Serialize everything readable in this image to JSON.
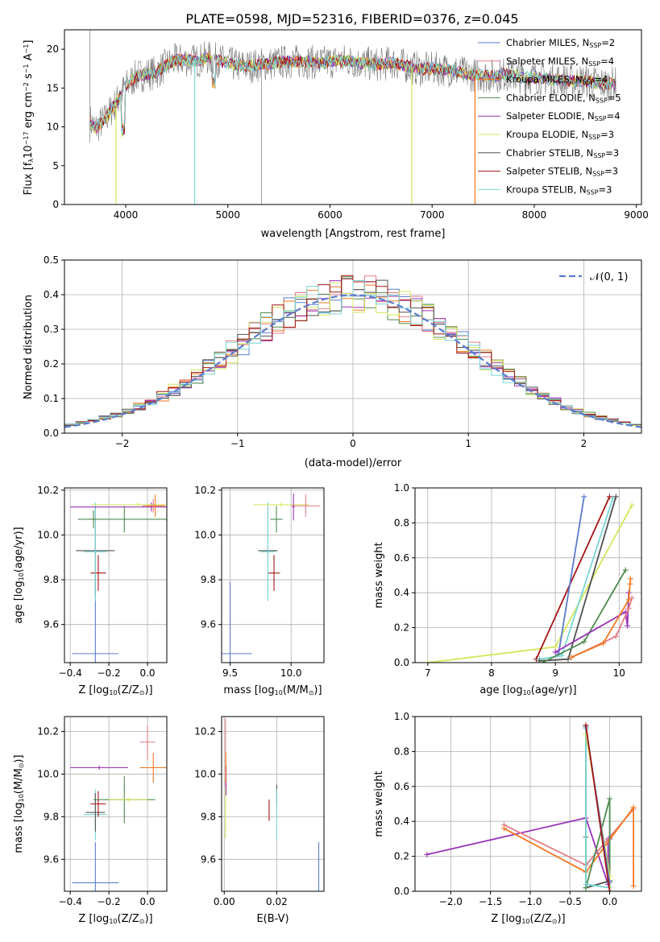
{
  "title": "PLATE=0598, MJD=52316, FIBERID=0376, z=0.045",
  "colors": {
    "Chabrier MILES": "#5b7ccc",
    "Salpeter MILES": "#e37a86",
    "Kroupa MILES": "#c88420",
    "Chabrier ELODIE": "#4e8a4e",
    "Salpeter ELODIE": "#9a32b8",
    "Kroupa ELODIE": "#d4e65a",
    "Chabrier STELIB": "#505050",
    "Salpeter STELIB": "#a31515",
    "Kroupa STELIB": "#7ad6d6",
    "orange": "#f07820",
    "gaussian": "#5b7ccc"
  },
  "chart_data": [
    {
      "type": "line",
      "panel": "spectrum",
      "xlabel": "wavelength [Angstrom, rest frame]",
      "ylabel_main": "Flux [f",
      "ylabel_sub": "λ",
      "ylabel_rest": "10",
      "ylabel_sup1": "−17",
      "ylabel_mid": " erg cm",
      "ylabel_sup2": "−2",
      "ylabel_mid2": " s",
      "ylabel_sup3": "−1",
      "ylabel_end": " A",
      "ylabel_sup4": "−1",
      "ylabel_close": "]",
      "xlim": [
        3400,
        9050
      ],
      "ylim": [
        0,
        22.5
      ],
      "xticks": [
        4000,
        5000,
        6000,
        7000,
        8000,
        9000
      ],
      "yticks": [
        0,
        5,
        10,
        15,
        20
      ],
      "legend": [
        {
          "name": "Chabrier MILES",
          "nssp": "2"
        },
        {
          "name": "Salpeter MILES",
          "nssp": "4"
        },
        {
          "name": "Kroupa MILES",
          "nssp": "4"
        },
        {
          "name": "Chabrier ELODIE",
          "nssp": "5"
        },
        {
          "name": "Salpeter ELODIE",
          "nssp": "4"
        },
        {
          "name": "Kroupa ELODIE",
          "nssp": "3"
        },
        {
          "name": "Chabrier STELIB",
          "nssp": "3"
        },
        {
          "name": "Salpeter STELIB",
          "nssp": "3"
        },
        {
          "name": "Kroupa STELIB",
          "nssp": "3"
        }
      ],
      "legend_prefix": "N",
      "legend_sub": "SSP",
      "continuum": [
        [
          3650,
          10.8
        ],
        [
          3700,
          9.8
        ],
        [
          3800,
          11.0
        ],
        [
          3900,
          13.0
        ],
        [
          4000,
          15.2
        ],
        [
          4100,
          16.5
        ],
        [
          4200,
          16.8
        ],
        [
          4300,
          17.0
        ],
        [
          4400,
          18.0
        ],
        [
          4500,
          18.6
        ],
        [
          4600,
          18.6
        ],
        [
          4700,
          18.5
        ],
        [
          4800,
          18.9
        ],
        [
          4900,
          18.6
        ],
        [
          5000,
          18.2
        ],
        [
          5100,
          17.9
        ],
        [
          5200,
          17.8
        ],
        [
          5300,
          18.0
        ],
        [
          5400,
          18.1
        ],
        [
          5500,
          18.3
        ],
        [
          5600,
          18.4
        ],
        [
          5700,
          18.4
        ],
        [
          5800,
          18.4
        ],
        [
          5900,
          18.2
        ],
        [
          6000,
          18.4
        ],
        [
          6100,
          18.5
        ],
        [
          6200,
          18.5
        ],
        [
          6300,
          18.2
        ],
        [
          6400,
          18.1
        ],
        [
          6500,
          18.0
        ],
        [
          6600,
          18.3
        ],
        [
          6700,
          18.0
        ],
        [
          6800,
          17.7
        ],
        [
          6900,
          17.4
        ],
        [
          7000,
          17.5
        ],
        [
          7100,
          17.4
        ],
        [
          7200,
          17.3
        ],
        [
          7300,
          16.9
        ],
        [
          7400,
          16.7
        ],
        [
          7500,
          16.6
        ],
        [
          7600,
          16.5
        ],
        [
          7700,
          16.8
        ],
        [
          7800,
          16.6
        ],
        [
          7900,
          16.3
        ],
        [
          8000,
          16.4
        ],
        [
          8100,
          16.2
        ],
        [
          8200,
          16.1
        ],
        [
          8300,
          16.0
        ],
        [
          8400,
          15.9
        ],
        [
          8500,
          15.9
        ],
        [
          8600,
          15.7
        ],
        [
          8700,
          15.5
        ],
        [
          8800,
          15.6
        ]
      ],
      "drops": [
        {
          "color": "Kroupa ELODIE",
          "x": 3905,
          "y": 0
        },
        {
          "color": "Kroupa STELIB",
          "x": 4675,
          "y": 0
        },
        {
          "color": "Kroupa ELODIE",
          "x": 6800,
          "y": 0
        },
        {
          "color": "orange",
          "x": 7420,
          "y": 0
        }
      ]
    },
    {
      "type": "histogram",
      "panel": "residuals",
      "xlabel": "(data-model)/error",
      "ylabel": "Normed distribution",
      "xlim": [
        -2.5,
        2.5
      ],
      "ylim": [
        0,
        0.5
      ],
      "xticks": [
        -2,
        -1,
        0,
        1,
        2
      ],
      "xticklabels": [
        "−2",
        "−1",
        "0",
        "1",
        "2"
      ],
      "yticks": [
        0.0,
        0.1,
        0.2,
        0.3,
        0.4,
        0.5
      ],
      "yticklabels": [
        "0.0",
        "0.1",
        "0.2",
        "0.3",
        "0.4",
        "0.5"
      ],
      "legend_label": "𝒩(0, 1)",
      "bin_width": 0.1
    },
    {
      "type": "errorbar",
      "panel": "age-vs-Z",
      "xlabel": "Z [log",
      "xlabel_sub": "10",
      "xlabel_rest": "(Z/Z",
      "xlabel_sub2": "⊙",
      "xlabel_close": ")]",
      "ylabel": "age  [log",
      "ylabel_sub": "10",
      "ylabel_rest": "(age/yr)]",
      "xlim": [
        -0.43,
        0.1
      ],
      "ylim": [
        9.43,
        10.21
      ],
      "xticks": [
        -0.4,
        -0.2,
        0.0
      ],
      "xticklabels": [
        "−0.4",
        "−0.2",
        "0.0"
      ],
      "yticks": [
        9.6,
        9.8,
        10.0,
        10.2
      ],
      "yticklabels": [
        "9.6",
        "9.8",
        "10.0",
        "10.2"
      ],
      "points": [
        {
          "c": "Chabrier MILES",
          "x": -0.27,
          "y": 9.47,
          "xe": 0.12,
          "ye": 0.32
        },
        {
          "c": "Salpeter STELIB",
          "x": -0.255,
          "y": 9.83,
          "xe": 0.04,
          "ye": 0.08
        },
        {
          "c": "Chabrier STELIB",
          "x": -0.27,
          "y": 9.93,
          "xe": 0.1,
          "ye": 0.2
        },
        {
          "c": "Kroupa STELIB",
          "x": -0.27,
          "y": 9.925,
          "xe": 0.06,
          "ye": 0.22
        },
        {
          "c": "Chabrier ELODIE",
          "x": -0.12,
          "y": 10.07,
          "xe": 0.24,
          "ye": 0.06
        },
        {
          "c": "Chabrier ELODIE",
          "x": -0.28,
          "y": 10.07,
          "xe": 0.02,
          "ye": 0.04
        },
        {
          "c": "Salpeter ELODIE",
          "x": 0.02,
          "y": 10.125,
          "xe": 0.42,
          "ye": 0.02
        },
        {
          "c": "Kroupa ELODIE",
          "x": -0.05,
          "y": 10.135,
          "xe": 0.24,
          "ye": 0.01
        },
        {
          "c": "Salpeter MILES",
          "x": 0.03,
          "y": 10.13,
          "xe": 0.06,
          "ye": 0.03
        },
        {
          "c": "orange",
          "x": 0.04,
          "y": 10.13,
          "xe": 0.05,
          "ye": 0.05
        }
      ]
    },
    {
      "type": "errorbar",
      "panel": "age-vs-mass",
      "xlabel": "mass [log",
      "xlabel_sub": "10",
      "xlabel_rest": "(M/M",
      "xlabel_sub2": "⊙",
      "xlabel_close": ")]",
      "xlim": [
        9.43,
        10.27
      ],
      "ylim": [
        9.43,
        10.21
      ],
      "xticks": [
        9.5,
        10.0
      ],
      "xticklabels": [
        "9.5",
        "10.0"
      ],
      "yticks": [
        9.6,
        9.8,
        10.0,
        10.2
      ],
      "yticklabels": [
        "9.6",
        "9.8",
        "10.0",
        "10.2"
      ],
      "points": [
        {
          "c": "Chabrier MILES",
          "x": 9.5,
          "y": 9.47,
          "xe": 0.18,
          "ye": 0.32
        },
        {
          "c": "Salpeter STELIB",
          "x": 9.86,
          "y": 9.83,
          "xe": 0.05,
          "ye": 0.08
        },
        {
          "c": "Chabrier STELIB",
          "x": 9.81,
          "y": 9.93,
          "xe": 0.08,
          "ye": 0.2
        },
        {
          "c": "Kroupa STELIB",
          "x": 9.81,
          "y": 9.925,
          "xe": 0.06,
          "ye": 0.22
        },
        {
          "c": "Chabrier ELODIE",
          "x": 9.88,
          "y": 10.07,
          "xe": 0.05,
          "ye": 0.06
        },
        {
          "c": "Kroupa ELODIE",
          "x": 9.92,
          "y": 10.135,
          "xe": 0.23,
          "ye": 0.01
        },
        {
          "c": "Salpeter ELODIE",
          "x": 10.02,
          "y": 10.125,
          "xe": 0.01,
          "ye": 0.06
        },
        {
          "c": "Salpeter MILES",
          "x": 10.12,
          "y": 10.13,
          "xe": 0.12,
          "ye": 0.05
        }
      ]
    },
    {
      "type": "line",
      "panel": "weight-vs-age",
      "xlabel": "age  [log",
      "xlabel_sub": "10",
      "xlabel_rest": "(age/yr)]",
      "ylabel": "mass weight",
      "xlim": [
        6.8,
        10.35
      ],
      "ylim": [
        0,
        1.0
      ],
      "xticks": [
        7,
        8,
        9,
        10
      ],
      "xticklabels": [
        "7",
        "8",
        "9",
        "10"
      ],
      "yticks": [
        0.0,
        0.2,
        0.4,
        0.6,
        0.8,
        1.0
      ],
      "yticklabels": [
        "0.0",
        "0.2",
        "0.4",
        "0.6",
        "0.8",
        "1.0"
      ],
      "series": [
        {
          "c": "Kroupa ELODIE",
          "x": [
            7.0,
            9.0,
            10.2
          ],
          "y": [
            0.0,
            0.09,
            0.9
          ]
        },
        {
          "c": "Salpeter STELIB",
          "x": [
            8.7,
            9.85
          ],
          "y": [
            0.02,
            0.95
          ]
        },
        {
          "c": "Chabrier MILES",
          "x": [
            9.05,
            9.45
          ],
          "y": [
            0.05,
            0.95
          ]
        },
        {
          "c": "Kroupa STELIB",
          "x": [
            8.75,
            9.1,
            9.9
          ],
          "y": [
            0.02,
            0.04,
            0.94
          ]
        },
        {
          "c": "Chabrier STELIB",
          "x": [
            8.75,
            9.2,
            9.95
          ],
          "y": [
            0.01,
            0.02,
            0.95
          ]
        },
        {
          "c": "Chabrier ELODIE",
          "x": [
            8.8,
            9.45,
            10.1
          ],
          "y": [
            0.0,
            0.12,
            0.53
          ]
        },
        {
          "c": "Salpeter ELODIE",
          "x": [
            9.0,
            10.1,
            10.13,
            10.15
          ],
          "y": [
            0.06,
            0.29,
            0.21,
            0.4
          ]
        },
        {
          "c": "Salpeter MILES",
          "x": [
            9.25,
            9.95,
            10.15,
            10.2
          ],
          "y": [
            0.03,
            0.15,
            0.31,
            0.37
          ]
        },
        {
          "c": "orange",
          "x": [
            9.25,
            9.75,
            10.15,
            10.17,
            10.18
          ],
          "y": [
            0.03,
            0.11,
            0.36,
            0.45,
            0.48
          ]
        }
      ]
    },
    {
      "type": "errorbar",
      "panel": "mass-vs-Z",
      "xlabel": "Z [log",
      "xlabel_sub": "10",
      "xlabel_rest": "(Z/Z",
      "xlabel_sub2": "⊙",
      "xlabel_close": ")]",
      "ylabel": "mass [log",
      "ylabel_sub": "10",
      "ylabel_rest": "(M/M",
      "ylabel_sub2": "⊙",
      "ylabel_close": ")]",
      "xlim": [
        -0.43,
        0.1
      ],
      "ylim": [
        9.45,
        10.27
      ],
      "xticks": [
        -0.4,
        -0.2,
        0.0
      ],
      "xticklabels": [
        "−0.4",
        "−0.2",
        "0.0"
      ],
      "yticks": [
        9.6,
        9.8,
        10.0,
        10.2
      ],
      "yticklabels": [
        "9.6",
        "9.8",
        "10.0",
        "10.2"
      ],
      "points": [
        {
          "c": "Chabrier MILES",
          "x": -0.27,
          "y": 9.49,
          "xe": 0.12,
          "ye": 0.19
        },
        {
          "c": "Kroupa STELIB",
          "x": -0.27,
          "y": 9.81,
          "xe": 0.06,
          "ye": 0.12
        },
        {
          "c": "Chabrier STELIB",
          "x": -0.27,
          "y": 9.82,
          "xe": 0.05,
          "ye": 0.09
        },
        {
          "c": "Salpeter STELIB",
          "x": -0.255,
          "y": 9.86,
          "xe": 0.04,
          "ye": 0.06
        },
        {
          "c": "Chabrier ELODIE",
          "x": -0.12,
          "y": 9.88,
          "xe": 0.16,
          "ye": 0.11
        },
        {
          "c": "Kroupa ELODIE",
          "x": -0.1,
          "y": 9.88,
          "xe": 0.1,
          "ye": 0.01
        },
        {
          "c": "Salpeter ELODIE",
          "x": -0.25,
          "y": 10.03,
          "xe": 0.15,
          "ye": 0.01
        },
        {
          "c": "orange",
          "x": 0.03,
          "y": 10.03,
          "xe": 0.07,
          "ye": 0.07
        },
        {
          "c": "Salpeter MILES",
          "x": 0.0,
          "y": 10.15,
          "xe": 0.04,
          "ye": 0.08
        }
      ]
    },
    {
      "type": "errorbar",
      "panel": "mass-vs-ebv",
      "xlabel": "E(B-V)",
      "xlim": [
        -0.001,
        0.038
      ],
      "ylim": [
        9.45,
        10.27
      ],
      "xticks": [
        0.0,
        0.02
      ],
      "xticklabels": [
        "0.00",
        "0.02"
      ],
      "yticks": [
        9.6,
        9.8,
        10.0,
        10.2
      ],
      "yticklabels": [
        "9.6",
        "9.8",
        "10.0",
        "10.2"
      ],
      "points": [
        {
          "c": "Kroupa ELODIE",
          "x": 0.0005,
          "y": 9.82,
          "xe": 0,
          "ye": 0.12
        },
        {
          "c": "Salpeter MILES",
          "x": 0.0005,
          "y": 10.1,
          "xe": 0,
          "ye": 0.16
        },
        {
          "c": "Salpeter ELODIE",
          "x": 0.0007,
          "y": 9.97,
          "xe": 0,
          "ye": 0.07
        },
        {
          "c": "orange",
          "x": 0.0006,
          "y": 10.03,
          "xe": 0,
          "ye": 0.07
        },
        {
          "c": "Salpeter STELIB",
          "x": 0.0171,
          "y": 9.83,
          "xe": 0,
          "ye": 0.05
        },
        {
          "c": "Chabrier STELIB",
          "x": 0.02,
          "y": 9.9,
          "xe": 0,
          "ye": 0.05
        },
        {
          "c": "Kroupa STELIB",
          "x": 0.02,
          "y": 9.81,
          "xe": 0,
          "ye": 0.12
        },
        {
          "c": "Chabrier MILES",
          "x": 0.036,
          "y": 9.49,
          "xe": 0,
          "ye": 0.19
        }
      ]
    },
    {
      "type": "line",
      "panel": "weight-vs-Z",
      "xlabel": "Z [log",
      "xlabel_sub": "10",
      "xlabel_rest": "(Z/Z",
      "xlabel_sub2": "⊙",
      "xlabel_close": ")]",
      "ylabel": "mass weight",
      "xlim": [
        -2.45,
        0.4
      ],
      "ylim": [
        0,
        1.0
      ],
      "xticks": [
        -2.0,
        -1.5,
        -1.0,
        -0.5,
        0.0
      ],
      "xticklabels": [
        "−2.0",
        "−1.5",
        "−1.0",
        "−0.5",
        "0.0"
      ],
      "yticks": [
        0.0,
        0.2,
        0.4,
        0.6,
        0.8,
        1.0
      ],
      "yticklabels": [
        "0.0",
        "0.2",
        "0.4",
        "0.6",
        "0.8",
        "1.0"
      ],
      "series": [
        {
          "c": "Salpeter ELODIE",
          "x": [
            -2.3,
            -0.3,
            -0.02,
            -0.02,
            0.0
          ],
          "y": [
            0.21,
            0.42,
            0.04,
            0.3,
            0.3
          ]
        },
        {
          "c": "Salpeter MILES",
          "x": [
            -1.33,
            -0.3,
            0.3
          ],
          "y": [
            0.38,
            0.15,
            0.47
          ]
        },
        {
          "c": "orange",
          "x": [
            -1.33,
            -0.3,
            0.3,
            0.3
          ],
          "y": [
            0.36,
            0.11,
            0.48,
            0.03
          ]
        },
        {
          "c": "Chabrier STELIB",
          "x": [
            -0.3,
            -0.3,
            0.0,
            0.0
          ],
          "y": [
            0.95,
            0.02,
            0.06,
            0.0
          ]
        },
        {
          "c": "Chabrier ELODIE",
          "x": [
            -0.3,
            -0.3,
            0.0,
            0.0
          ],
          "y": [
            0.31,
            0.02,
            0.53,
            0.0
          ]
        },
        {
          "c": "Kroupa STELIB",
          "x": [
            -0.3,
            -0.3,
            0.0
          ],
          "y": [
            0.93,
            0.04,
            0.02
          ]
        },
        {
          "c": "Kroupa ELODIE",
          "x": [
            -0.3,
            0.0,
            0.0
          ],
          "y": [
            0.9,
            0.09,
            0.0
          ]
        },
        {
          "c": "Chabrier MILES",
          "x": [
            -0.3,
            0.0
          ],
          "y": [
            0.94,
            0.05
          ]
        },
        {
          "c": "Salpeter STELIB",
          "x": [
            -0.3,
            0.0
          ],
          "y": [
            0.95,
            0.0
          ]
        }
      ]
    }
  ]
}
